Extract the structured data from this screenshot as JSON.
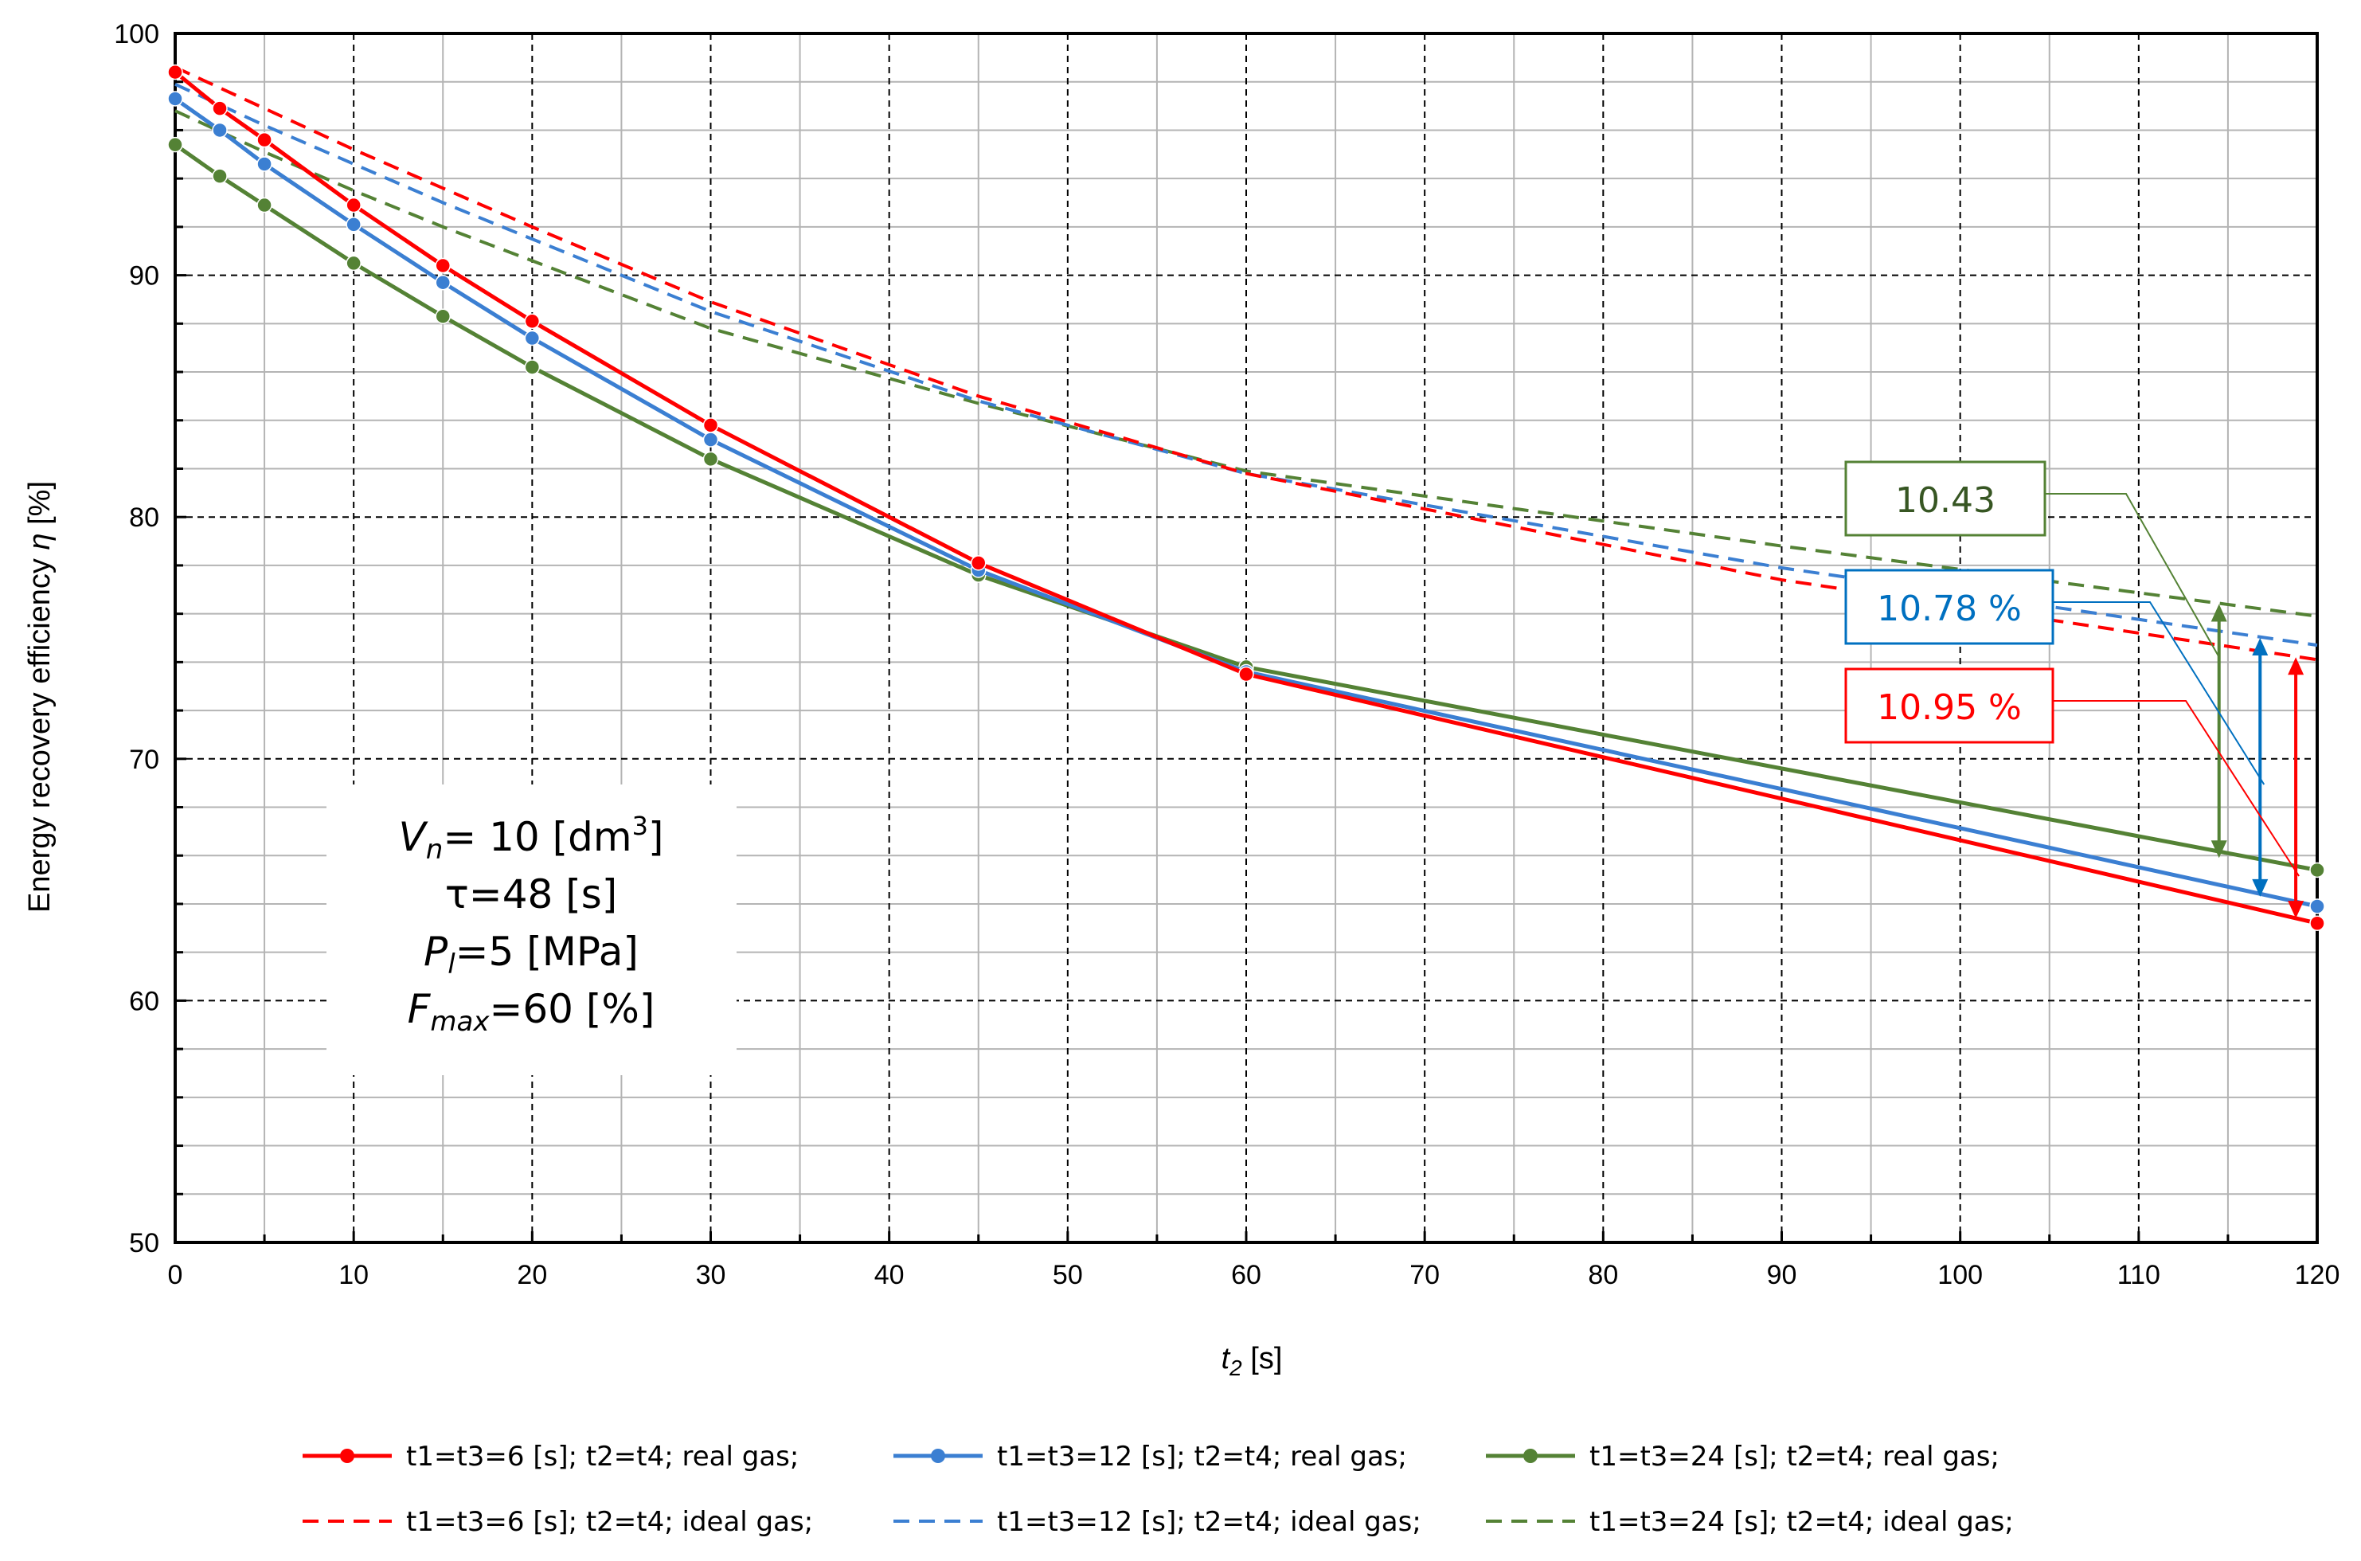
{
  "chart_data": {
    "type": "line",
    "title": "",
    "xlabel_var": "t",
    "xlabel_sub": "2",
    "xlabel_unit": " [s]",
    "ylabel_prefix": "Energy recovery efficiency ",
    "ylabel_symbol": "η",
    "ylabel_suffix": " [%]",
    "xlim": [
      0,
      120
    ],
    "ylim": [
      50,
      100
    ],
    "xticks": [
      0,
      10,
      20,
      30,
      40,
      50,
      60,
      70,
      80,
      90,
      100,
      110,
      120
    ],
    "yticks": [
      50,
      60,
      70,
      80,
      90,
      100
    ],
    "grid": true,
    "series": [
      {
        "name": "t1=t3=6 [s]; t2=t4; real gas;",
        "color": "#ff0000",
        "style": "solid",
        "markers": true,
        "x": [
          0,
          2.5,
          5,
          10,
          15,
          20,
          30,
          45,
          60,
          120
        ],
        "y": [
          98.4,
          96.9,
          95.6,
          92.9,
          90.4,
          88.1,
          83.8,
          78.1,
          73.5,
          63.2
        ]
      },
      {
        "name": "t1=t3=12 [s]; t2=t4; real gas;",
        "color": "#3b7fd2",
        "style": "solid",
        "markers": true,
        "x": [
          0,
          2.5,
          5,
          10,
          15,
          20,
          30,
          45,
          60,
          120
        ],
        "y": [
          97.3,
          96.0,
          94.6,
          92.1,
          89.7,
          87.4,
          83.2,
          77.8,
          73.6,
          63.9
        ]
      },
      {
        "name": "t1=t3=24 [s]; t2=t4; real gas;",
        "color": "#548235",
        "style": "solid",
        "markers": true,
        "x": [
          0,
          2.5,
          5,
          10,
          15,
          20,
          30,
          45,
          60,
          120
        ],
        "y": [
          95.4,
          94.1,
          92.9,
          90.5,
          88.3,
          86.2,
          82.4,
          77.6,
          73.8,
          65.4
        ]
      },
      {
        "name": "t1=t3=6 [s]; t2=t4; ideal gas;",
        "color": "#ff0000",
        "style": "dashed",
        "markers": false,
        "x": [
          0,
          5,
          10,
          15,
          20,
          30,
          45,
          60,
          90,
          120
        ],
        "y": [
          98.6,
          96.9,
          95.2,
          93.6,
          92.0,
          88.9,
          85.0,
          81.8,
          77.4,
          74.1
        ]
      },
      {
        "name": "t1=t3=12 [s]; t2=t4; ideal gas;",
        "color": "#3b7fd2",
        "style": "dashed",
        "markers": false,
        "x": [
          0,
          5,
          10,
          15,
          20,
          30,
          45,
          60,
          90,
          120
        ],
        "y": [
          97.9,
          96.2,
          94.6,
          93.0,
          91.5,
          88.5,
          84.8,
          81.8,
          77.9,
          74.7
        ]
      },
      {
        "name": "t1=t3=24 [s]; t2=t4; ideal gas;",
        "color": "#548235",
        "style": "dashed",
        "markers": false,
        "x": [
          0,
          5,
          10,
          15,
          20,
          30,
          45,
          60,
          90,
          120
        ],
        "y": [
          96.8,
          95.1,
          93.5,
          92.0,
          90.6,
          87.8,
          84.7,
          81.9,
          78.8,
          75.9
        ]
      }
    ],
    "annotations": [
      {
        "label": "10.43",
        "color": "#548235",
        "arrow_x": 114.5,
        "arrow_y_top": 76.4,
        "arrow_y_bottom": 65.9
      },
      {
        "label": "10.78 %",
        "color": "#0070c0",
        "arrow_x": 116.8,
        "arrow_y_top": 75.0,
        "arrow_y_bottom": 64.3
      },
      {
        "label": "10.95 %",
        "color": "#ff0000",
        "arrow_x": 118.8,
        "arrow_y_top": 74.2,
        "arrow_y_bottom": 63.4
      }
    ],
    "legend_position": "bottom",
    "info_box": {
      "line1_var": "V",
      "line1_sub": "n",
      "line1_rest": "= 10 [dm",
      "line1_sup": "3",
      "line1_end": "]",
      "line2": "τ=48 [s]",
      "line3_var": "P",
      "line3_sub": "l",
      "line3_rest": "=5 [MPa]",
      "line4_var": "F",
      "line4_sub": "max",
      "line4_rest": "=60 [%]"
    }
  }
}
